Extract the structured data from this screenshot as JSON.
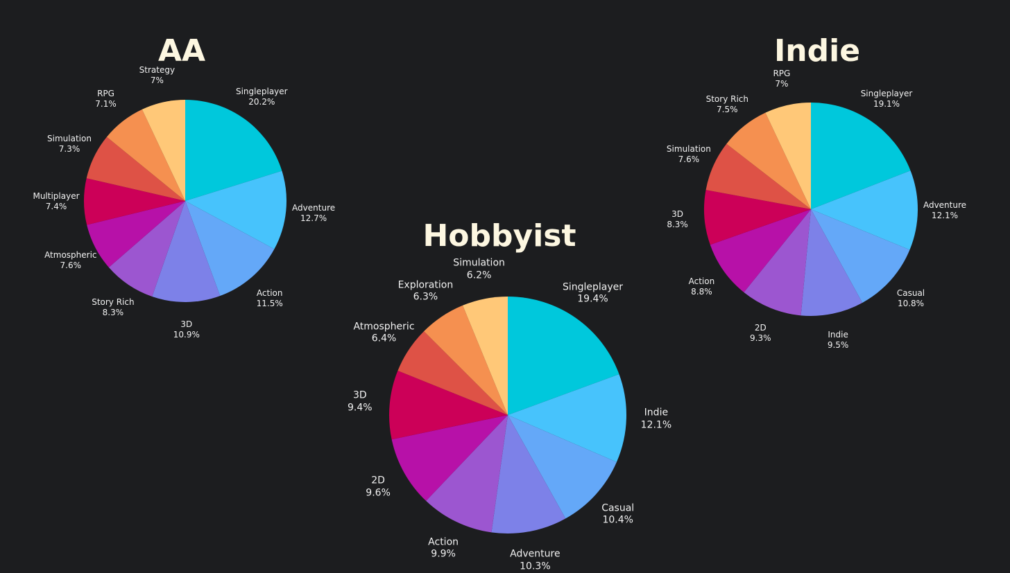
{
  "chart_data": [
    {
      "type": "pie",
      "title": "AA",
      "slices": [
        {
          "label": "Singleplayer",
          "value": 20.2,
          "value_text": "20.2%"
        },
        {
          "label": "Adventure",
          "value": 12.7,
          "value_text": "12.7%"
        },
        {
          "label": "Action",
          "value": 11.5,
          "value_text": "11.5%"
        },
        {
          "label": "3D",
          "value": 10.9,
          "value_text": "10.9%"
        },
        {
          "label": "Story Rich",
          "value": 8.3,
          "value_text": "8.3%"
        },
        {
          "label": "Atmospheric",
          "value": 7.6,
          "value_text": "7.6%"
        },
        {
          "label": "Multiplayer",
          "value": 7.4,
          "value_text": "7.4%"
        },
        {
          "label": "Simulation",
          "value": 7.3,
          "value_text": "7.3%"
        },
        {
          "label": "RPG",
          "value": 7.1,
          "value_text": "7.1%"
        },
        {
          "label": "Strategy",
          "value": 7.0,
          "value_text": "7%"
        }
      ]
    },
    {
      "type": "pie",
      "title": "Hobbyist",
      "slices": [
        {
          "label": "Singleplayer",
          "value": 19.4,
          "value_text": "19.4%"
        },
        {
          "label": "Indie",
          "value": 12.1,
          "value_text": "12.1%"
        },
        {
          "label": "Casual",
          "value": 10.4,
          "value_text": "10.4%"
        },
        {
          "label": "Adventure",
          "value": 10.3,
          "value_text": "10.3%"
        },
        {
          "label": "Action",
          "value": 9.9,
          "value_text": "9.9%"
        },
        {
          "label": "2D",
          "value": 9.6,
          "value_text": "9.6%"
        },
        {
          "label": "3D",
          "value": 9.4,
          "value_text": "9.4%"
        },
        {
          "label": "Atmospheric",
          "value": 6.4,
          "value_text": "6.4%"
        },
        {
          "label": "Exploration",
          "value": 6.3,
          "value_text": "6.3%"
        },
        {
          "label": "Simulation",
          "value": 6.2,
          "value_text": "6.2%"
        }
      ]
    },
    {
      "type": "pie",
      "title": "Indie",
      "slices": [
        {
          "label": "Singleplayer",
          "value": 19.1,
          "value_text": "19.1%"
        },
        {
          "label": "Adventure",
          "value": 12.1,
          "value_text": "12.1%"
        },
        {
          "label": "Casual",
          "value": 10.8,
          "value_text": "10.8%"
        },
        {
          "label": "Indie",
          "value": 9.5,
          "value_text": "9.5%"
        },
        {
          "label": "2D",
          "value": 9.3,
          "value_text": "9.3%"
        },
        {
          "label": "Action",
          "value": 8.8,
          "value_text": "8.8%"
        },
        {
          "label": "3D",
          "value": 8.3,
          "value_text": "8.3%"
        },
        {
          "label": "Simulation",
          "value": 7.6,
          "value_text": "7.6%"
        },
        {
          "label": "Story Rich",
          "value": 7.5,
          "value_text": "7.5%"
        },
        {
          "label": "RPG",
          "value": 7.0,
          "value_text": "7%"
        }
      ]
    }
  ],
  "colors": [
    "#00c8dc",
    "#47c3fc",
    "#64a8f8",
    "#7d81e8",
    "#9c56d0",
    "#b711a8",
    "#cc0058",
    "#de5246",
    "#f59050",
    "#ffc878"
  ]
}
